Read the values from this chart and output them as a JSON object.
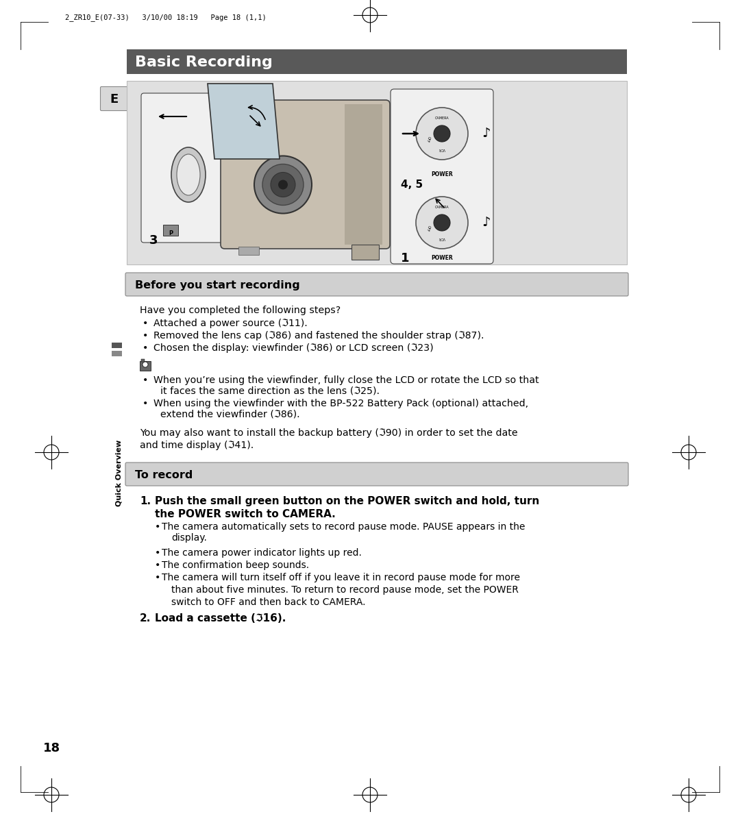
{
  "bg_color": "#ffffff",
  "page_header_text": "2_ZR10_E(07-33)   3/10/00 18:19   Page 18 (1,1)",
  "main_title": "Basic Recording",
  "main_title_bg": "#595959",
  "main_title_color": "#ffffff",
  "section1_title": "Before you start recording",
  "section1_title_bg": "#d0d0d0",
  "section2_title": "To record",
  "section2_title_bg": "#d0d0d0",
  "sidebar_label": "Quick Overview",
  "e_box_label": "E",
  "e_box_bg": "#d8d8d8",
  "page_number": "18",
  "diagram_bg": "#e0e0e0",
  "before_recording_intro": "Have you completed the following steps?",
  "before_recording_bullets": [
    "Attached a power source (ℑ11).",
    "Removed the lens cap (ℑ86) and fastened the shoulder strap (ℑ87).",
    "Chosen the display: viewfinder (ℑ86) or LCD screen (ℑ23)"
  ],
  "note_bullets_line1": "When you’re using the viewfinder, fully close the LCD or rotate the LCD so that",
  "note_bullets_line2": "it faces the same direction as the lens (ℑ25).",
  "note_bullets_line3": "When using the viewfinder with the BP-522 Battery Pack (optional) attached,",
  "note_bullets_line4": "extend the viewfinder (ℑ86).",
  "backup_line1": "You may also want to install the backup battery (ℑ90) in order to set the date",
  "backup_line2": "and time display (ℑ41).",
  "step1_line1": "Push the small green button on the POWER switch and hold, turn",
  "step1_line2": "the POWER switch to CAMERA.",
  "step1_bullets": [
    "The camera automatically sets to record pause mode. PAUSE appears in the",
    "display.",
    "The camera power indicator lights up red.",
    "The confirmation beep sounds.",
    "The camera will turn itself off if you leave it in record pause mode for more",
    "than about five minutes. To return to record pause mode, set the POWER",
    "switch to OFF and then back to CAMERA."
  ],
  "step2_text": "Load a cassette (ℑ16)."
}
